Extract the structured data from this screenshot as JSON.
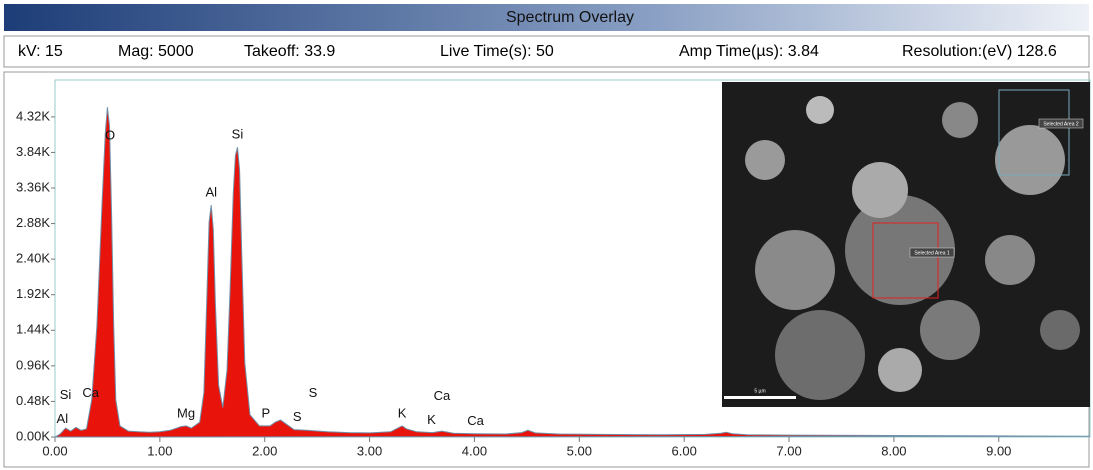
{
  "header": {
    "title": "Spectrum Overlay",
    "items": [
      "kV: 15",
      "Mag: 5000",
      "Takeoff: 33.9",
      "Live Time(s): 50",
      "Amp Time(µs): 3.84",
      "Resolution:(eV) 128.6"
    ]
  },
  "chart_data": {
    "type": "area",
    "x": [
      0.0,
      0.05,
      0.1,
      0.15,
      0.2,
      0.25,
      0.3,
      0.35,
      0.4,
      0.45,
      0.48,
      0.5,
      0.52,
      0.54,
      0.56,
      0.58,
      0.62,
      0.7,
      0.8,
      0.9,
      1.0,
      1.1,
      1.2,
      1.25,
      1.3,
      1.38,
      1.42,
      1.45,
      1.47,
      1.49,
      1.51,
      1.53,
      1.56,
      1.6,
      1.64,
      1.67,
      1.7,
      1.72,
      1.74,
      1.76,
      1.78,
      1.81,
      1.86,
      1.95,
      2.05,
      2.1,
      2.15,
      2.2,
      2.28,
      2.4,
      2.6,
      2.8,
      3.0,
      3.2,
      3.28,
      3.31,
      3.35,
      3.45,
      3.6,
      3.69,
      3.8,
      4.0,
      4.3,
      4.45,
      4.51,
      4.58,
      4.8,
      5.2,
      5.8,
      6.2,
      6.35,
      6.4,
      6.46,
      6.6,
      7.0,
      8.0,
      9.0,
      9.87
    ],
    "series": [
      {
        "color": "#e8140c",
        "line_color": "#6f8fa8",
        "values": [
          0,
          40,
          120,
          80,
          130,
          90,
          110,
          500,
          1500,
          3200,
          4100,
          4450,
          4200,
          3000,
          1500,
          500,
          150,
          80,
          70,
          65,
          70,
          90,
          140,
          150,
          120,
          200,
          600,
          2000,
          2900,
          3130,
          2800,
          1800,
          700,
          400,
          900,
          2000,
          3300,
          3800,
          3910,
          3600,
          2500,
          1000,
          300,
          150,
          150,
          200,
          230,
          180,
          100,
          90,
          70,
          60,
          55,
          70,
          130,
          150,
          110,
          70,
          60,
          80,
          50,
          45,
          40,
          60,
          90,
          55,
          40,
          35,
          30,
          35,
          50,
          65,
          45,
          30,
          25,
          20,
          15,
          10
        ]
      }
    ],
    "xlim": [
      0,
      9.87
    ],
    "ylim": [
      0,
      4750
    ],
    "xticks": [
      {
        "value": 0,
        "label": "0.00"
      },
      {
        "value": 1,
        "label": "1.00"
      },
      {
        "value": 2,
        "label": "2.00"
      },
      {
        "value": 3,
        "label": "3.00"
      },
      {
        "value": 4,
        "label": "4.00"
      },
      {
        "value": 5,
        "label": "5.00"
      },
      {
        "value": 6,
        "label": "6.00"
      },
      {
        "value": 7,
        "label": "7.00"
      },
      {
        "value": 8,
        "label": "8.00"
      },
      {
        "value": 9,
        "label": "9.00"
      }
    ],
    "yticks": [
      {
        "value": 0,
        "label": "0.00K"
      },
      {
        "value": 480,
        "label": "0.48K"
      },
      {
        "value": 960,
        "label": "0.96K"
      },
      {
        "value": 1440,
        "label": "1.44K"
      },
      {
        "value": 1920,
        "label": "1.92K"
      },
      {
        "value": 2400,
        "label": "2.40K"
      },
      {
        "value": 2880,
        "label": "2.88K"
      },
      {
        "value": 3360,
        "label": "3.36K"
      },
      {
        "value": 3840,
        "label": "3.84K"
      },
      {
        "value": 4320,
        "label": "4.32K"
      }
    ],
    "annotations": [
      {
        "text": "Al",
        "x": 0.07
      },
      {
        "text": "Si",
        "x": 0.1
      },
      {
        "text": "Ca",
        "x": 0.34
      },
      {
        "text": "O",
        "x": 0.525
      },
      {
        "text": "Mg",
        "x": 1.25
      },
      {
        "text": "Al",
        "x": 1.49
      },
      {
        "text": "Si",
        "x": 1.74
      },
      {
        "text": "P",
        "x": 2.01
      },
      {
        "text": "S",
        "x": 2.31
      },
      {
        "text": "S",
        "x": 2.46
      },
      {
        "text": "K",
        "x": 3.31
      },
      {
        "text": "K",
        "x": 3.59
      },
      {
        "text": "Ca",
        "x": 3.69
      },
      {
        "text": "Ca",
        "x": 4.01
      }
    ]
  },
  "inset": {
    "labels": [
      "Selected Area 1",
      "Selected Area 2",
      "5 µm"
    ]
  }
}
